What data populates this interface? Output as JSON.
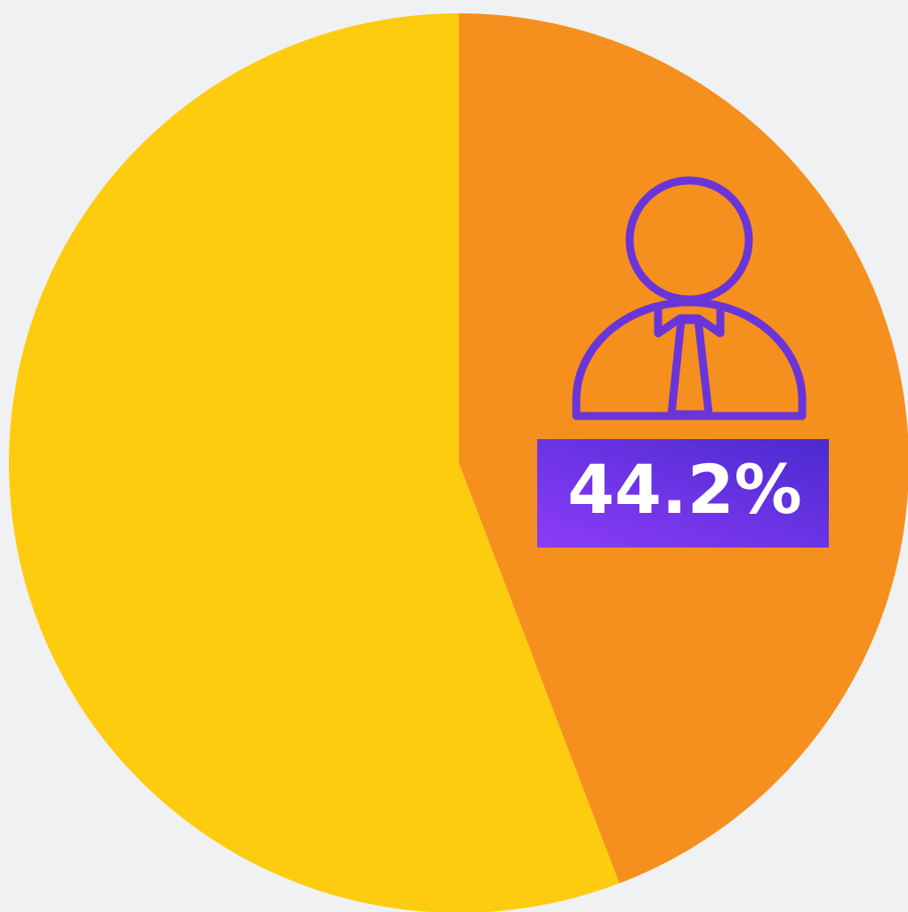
{
  "chart_data": {
    "type": "pie",
    "values": [
      44.2,
      55.8
    ],
    "value_labels": [
      "44.2%",
      null
    ],
    "colors": [
      "#f5901e",
      "#fecc0f"
    ]
  }
}
